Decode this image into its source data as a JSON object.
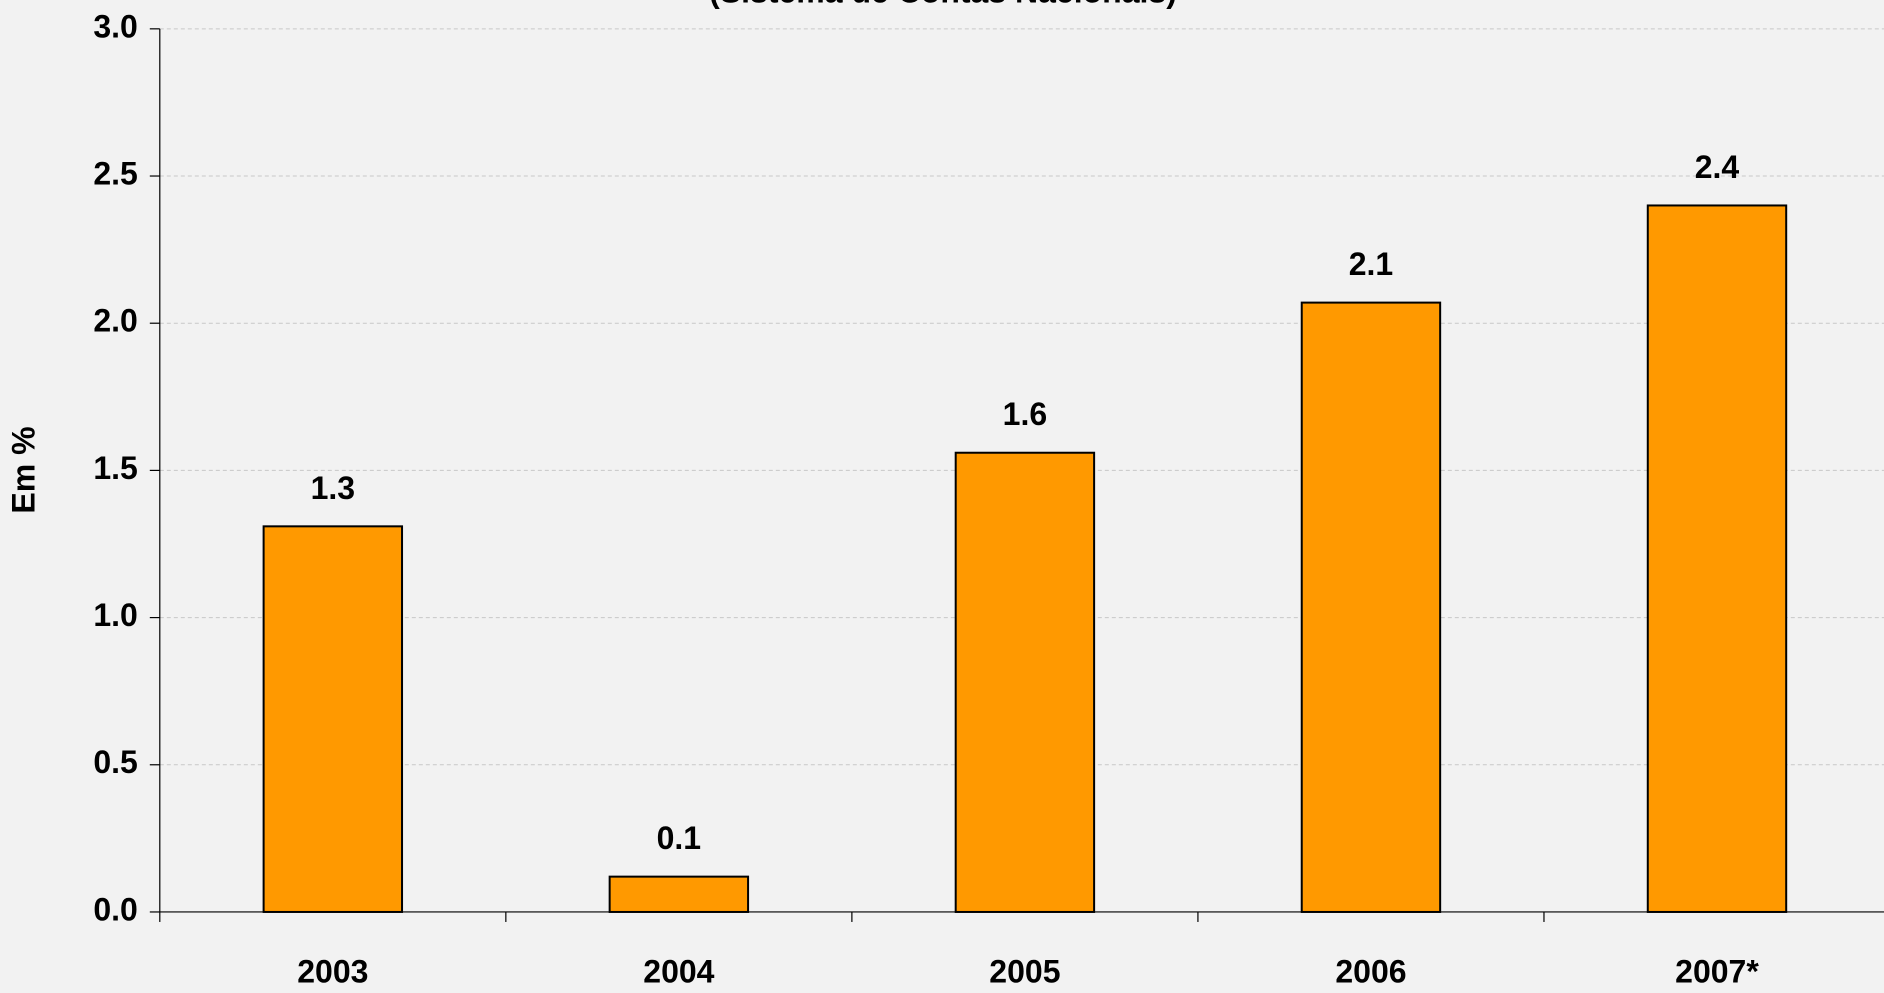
{
  "chart_data": {
    "type": "bar",
    "title": "(Sistema de Contas Nacionais)",
    "y_label": "Em %",
    "categories": [
      "2003",
      "2004",
      "2005",
      "2006",
      "2007*"
    ],
    "values": [
      1.31,
      0.12,
      1.56,
      2.07,
      2.4
    ],
    "value_labels": [
      "1.3",
      "0.1",
      "1.6",
      "2.1",
      "2.4"
    ],
    "color": "#ff9900",
    "ylim": [
      0,
      3
    ],
    "yticks": [
      {
        "value": 0,
        "label": "0.0"
      },
      {
        "value": 0.5,
        "label": "0.5"
      },
      {
        "value": 1,
        "label": "1.0"
      },
      {
        "value": 1.5,
        "label": "1.5"
      },
      {
        "value": 2,
        "label": "2.0"
      },
      {
        "value": 2.5,
        "label": "2.5"
      },
      {
        "value": 3,
        "label": "3.0"
      }
    ],
    "grid": true
  }
}
